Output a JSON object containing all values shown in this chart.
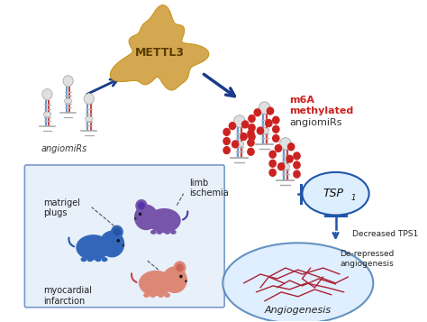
{
  "background_color": "#ffffff",
  "mettl3_color": "#d4a850",
  "mettl3_text": "METTL3",
  "mettl3_text_color": "#5c3d00",
  "arrow_color": "#1a3a8a",
  "m6a_label_line1": "m6A",
  "m6a_label_line2": "methylated",
  "m6a_label_line3": "angiomiRs",
  "m6a_color": "#cc2222",
  "m6a_label3_color": "#333333",
  "angiomirs_label": "angiomiRs",
  "angiomirs_label_color": "#333333",
  "tsp1_text": "TSP",
  "tsp1_sub": "1",
  "tsp1_ellipse_color": "#ddeeff",
  "tsp1_border_color": "#2255aa",
  "decreased_tsp1_text": "Decreased TPS1",
  "derepressed_text": "De-repressed\nangiogenesis",
  "angiogenesis_text": "Angiogenesis",
  "angiogenesis_ellipse_color": "#ddeeff",
  "angiogenesis_border_color": "#5588bb",
  "mouse_box_color": "#e8f0fa",
  "mouse_box_border": "#7799cc",
  "mouse_blue_color": "#3366bb",
  "mouse_purple_color": "#7755aa",
  "mouse_salmon_color": "#dd8877",
  "mouse_ear_salmon": "#cc6655",
  "mouse_tail_salmon": "#cc4444",
  "label_matrigel": "matrigel\nplugs",
  "label_limb": "limb\nischemia",
  "label_myocardial": "myocardial\ninfarction",
  "rna_stem_color_blue": "#6699cc",
  "rna_stem_color_red": "#cc4444",
  "rna_dot_color": "#cc2222",
  "rna_loop_color": "#e0e0e0",
  "rna_rung_color": "#bbbbbb",
  "inhibit_color": "#2255aa",
  "vessel_color": "#aa2233"
}
